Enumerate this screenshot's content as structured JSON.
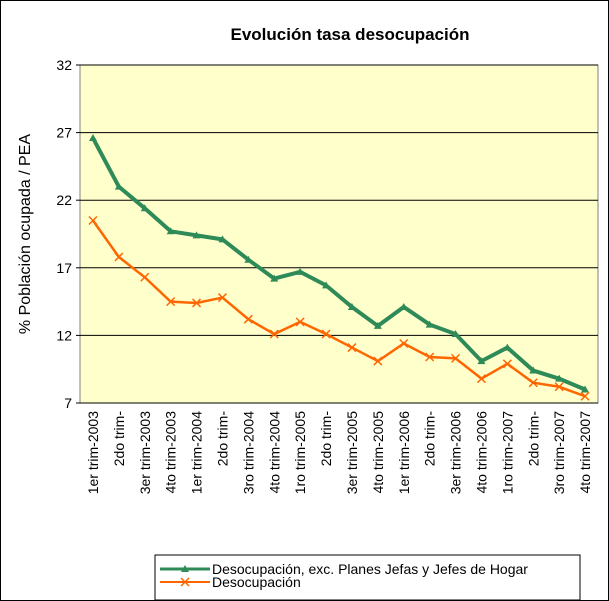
{
  "chart_data": {
    "type": "line",
    "title": "Evolución tasa desocupación",
    "ylabel": "% Población ocupada / PEA",
    "categories": [
      "1er trim-2003",
      "2do trim-",
      "3er trim-2003",
      "4to trim-2003",
      "1er trim-2004",
      "2do trim-",
      "3ro trim-2004",
      "4to trim-2004",
      "1ro trim-2005",
      "2do trim-",
      "3er trim-2005",
      "4to trim-2005",
      "1er trim-2006",
      "2do trim-",
      "3er trim-2006",
      "4to trim-2006",
      "1ro trim-2007",
      "2do trim-",
      "3ro trim-2007",
      "4to trim-2007"
    ],
    "series": [
      {
        "name": "Desocupación, exc. Planes Jefas y Jefes de Hogar",
        "color": "#2e8b57",
        "marker": "triangle",
        "values": [
          26.6,
          23.0,
          21.4,
          19.7,
          19.4,
          19.1,
          17.6,
          16.2,
          16.7,
          15.7,
          14.1,
          12.7,
          14.1,
          12.8,
          12.1,
          10.1,
          11.1,
          9.4,
          8.8,
          8.0
        ]
      },
      {
        "name": "Desocupación",
        "color": "#ff6600",
        "marker": "x",
        "values": [
          20.5,
          17.8,
          16.3,
          14.5,
          14.4,
          14.8,
          13.2,
          12.1,
          13.0,
          12.1,
          11.1,
          10.1,
          11.4,
          10.4,
          10.3,
          8.8,
          9.9,
          8.5,
          8.2,
          7.5
        ]
      }
    ],
    "ylim": [
      7,
      32
    ],
    "yticks": [
      7,
      12,
      17,
      22,
      27,
      32
    ],
    "grid": true
  }
}
